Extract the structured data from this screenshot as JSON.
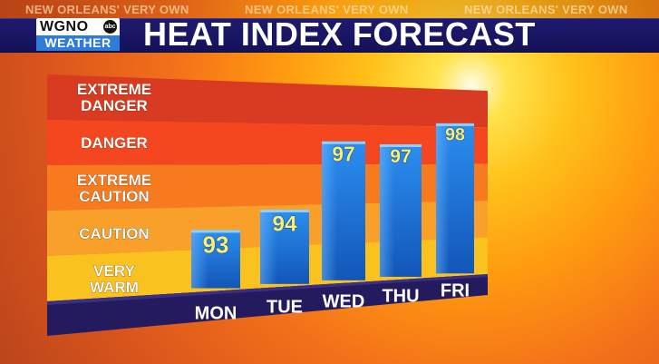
{
  "header": {
    "tagline": "NEW ORLEANS' VERY OWN",
    "title": "HEAT INDEX FORECAST"
  },
  "logo": {
    "station": "WGNO",
    "network": "abc",
    "sub": "WEATHER"
  },
  "colors": {
    "extreme_danger": "#d83a22",
    "danger": "#f5471f",
    "extreme_caution": "#f77a1e",
    "caution": "#f8a02a",
    "very_warm": "#f9c21f",
    "bar": "#1f7ee0",
    "base": "#241a5e"
  },
  "chart_data": {
    "type": "bar",
    "title": "HEAT INDEX FORECAST",
    "categories": [
      "MON",
      "TUE",
      "WED",
      "THU",
      "FRI"
    ],
    "values": [
      93,
      94,
      97,
      97,
      98
    ],
    "zones": [
      {
        "label_lines": [
          "EXTREME",
          "DANGER"
        ],
        "color": "#d83a22"
      },
      {
        "label_lines": [
          "DANGER"
        ],
        "color": "#f5471f"
      },
      {
        "label_lines": [
          "EXTREME",
          "CAUTION"
        ],
        "color": "#f77a1e"
      },
      {
        "label_lines": [
          "CAUTION"
        ],
        "color": "#f8a02a"
      },
      {
        "label_lines": [
          "VERY",
          "WARM"
        ],
        "color": "#f9c21f"
      }
    ],
    "grid": false,
    "legend": "none"
  }
}
